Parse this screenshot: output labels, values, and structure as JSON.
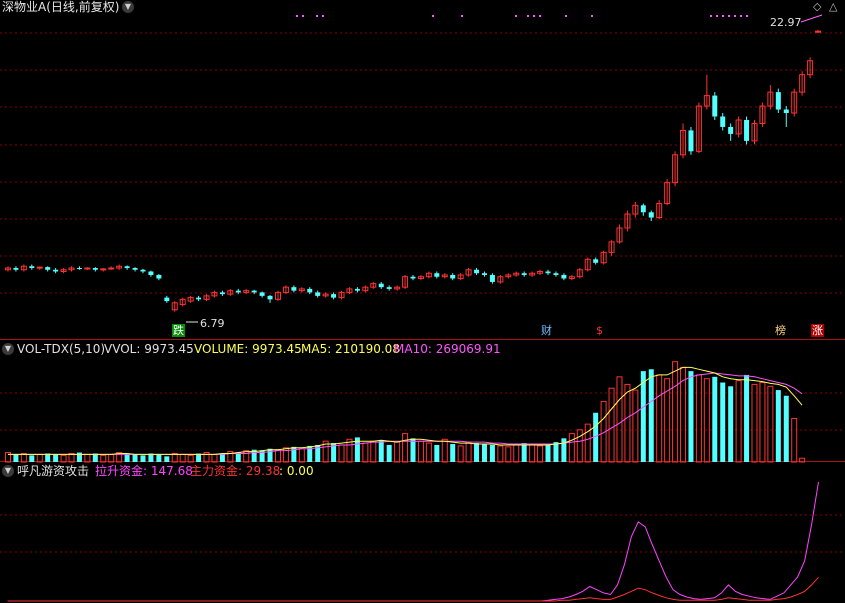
{
  "main_panel": {
    "title": "深物业A(日线,前复权)",
    "high_label": "22.97",
    "low_label": "6.79",
    "markers": {
      "die": "跌",
      "cai": "财",
      "dollar": "$",
      "bang": "榜",
      "zhang": "涨"
    },
    "colors": {
      "up": "#ff3232",
      "down": "#54ffff",
      "grid": "#8b0000",
      "panel_border": "#aa1111"
    }
  },
  "vol_panel": {
    "name": "VOL-TDX(5,10)",
    "vvol_label": "VVOL: 9973.45",
    "volume_label": "VOLUME: 9973.45",
    "ma5_label": "MA5: 210190.08",
    "ma10_label": "MA10: 269069.91",
    "colors": {
      "ma5": "#ffff55",
      "ma10": "#ff55ff",
      "volume": "#ffff55"
    }
  },
  "ind_panel": {
    "name": "呼凡游资攻击",
    "lift_label": "拉升资金: 147.68",
    "main_label": "主力资金: 29.38",
    "zero_label": ": 0.00",
    "colors": {
      "lift": "#ff44ff",
      "main": "#ff3232",
      "zero": "#ffff55"
    }
  },
  "chart_data": {
    "type": "candlestick",
    "title": "深物业A(日线,前复权)",
    "price_high": 22.97,
    "price_low": 6.79,
    "price_range": [
      6.2,
      24.0
    ],
    "candles": [
      {
        "o": 9.2,
        "c": 9.3,
        "h": 9.4,
        "l": 9.1
      },
      {
        "o": 9.3,
        "c": 9.2,
        "h": 9.4,
        "l": 9.1
      },
      {
        "o": 9.2,
        "c": 9.4,
        "h": 9.5,
        "l": 9.1
      },
      {
        "o": 9.4,
        "c": 9.3,
        "h": 9.5,
        "l": 9.2
      },
      {
        "o": 9.3,
        "c": 9.35,
        "h": 9.4,
        "l": 9.2
      },
      {
        "o": 9.35,
        "c": 9.2,
        "h": 9.4,
        "l": 9.1
      },
      {
        "o": 9.2,
        "c": 9.1,
        "h": 9.3,
        "l": 9.0
      },
      {
        "o": 9.1,
        "c": 9.2,
        "h": 9.3,
        "l": 9.0
      },
      {
        "o": 9.2,
        "c": 9.3,
        "h": 9.4,
        "l": 9.1
      },
      {
        "o": 9.3,
        "c": 9.25,
        "h": 9.4,
        "l": 9.2
      },
      {
        "o": 9.25,
        "c": 9.3,
        "h": 9.35,
        "l": 9.2
      },
      {
        "o": 9.3,
        "c": 9.2,
        "h": 9.35,
        "l": 9.1
      },
      {
        "o": 9.2,
        "c": 9.25,
        "h": 9.3,
        "l": 9.1
      },
      {
        "o": 9.25,
        "c": 9.3,
        "h": 9.4,
        "l": 9.2
      },
      {
        "o": 9.3,
        "c": 9.4,
        "h": 9.5,
        "l": 9.2
      },
      {
        "o": 9.4,
        "c": 9.3,
        "h": 9.45,
        "l": 9.2
      },
      {
        "o": 9.3,
        "c": 9.2,
        "h": 9.35,
        "l": 9.1
      },
      {
        "o": 9.2,
        "c": 9.1,
        "h": 9.25,
        "l": 9.0
      },
      {
        "o": 9.1,
        "c": 8.9,
        "h": 9.15,
        "l": 8.8
      },
      {
        "o": 8.9,
        "c": 8.7,
        "h": 8.95,
        "l": 8.6
      },
      {
        "o": 7.6,
        "c": 7.4,
        "h": 7.7,
        "l": 7.3
      },
      {
        "o": 6.9,
        "c": 7.3,
        "h": 7.4,
        "l": 6.79
      },
      {
        "o": 7.2,
        "c": 7.5,
        "h": 7.6,
        "l": 7.1
      },
      {
        "o": 7.4,
        "c": 7.6,
        "h": 7.7,
        "l": 7.3
      },
      {
        "o": 7.6,
        "c": 7.5,
        "h": 7.7,
        "l": 7.4
      },
      {
        "o": 7.5,
        "c": 7.7,
        "h": 7.8,
        "l": 7.4
      },
      {
        "o": 7.7,
        "c": 7.9,
        "h": 8.0,
        "l": 7.6
      },
      {
        "o": 7.9,
        "c": 7.8,
        "h": 8.0,
        "l": 7.7
      },
      {
        "o": 7.8,
        "c": 8.0,
        "h": 8.1,
        "l": 7.7
      },
      {
        "o": 8.0,
        "c": 7.9,
        "h": 8.1,
        "l": 7.8
      },
      {
        "o": 7.9,
        "c": 8.0,
        "h": 8.1,
        "l": 7.8
      },
      {
        "o": 8.0,
        "c": 7.9,
        "h": 8.05,
        "l": 7.8
      },
      {
        "o": 7.9,
        "c": 7.7,
        "h": 7.95,
        "l": 7.6
      },
      {
        "o": 7.7,
        "c": 7.5,
        "h": 7.75,
        "l": 7.3
      },
      {
        "o": 7.5,
        "c": 7.9,
        "h": 8.0,
        "l": 7.4
      },
      {
        "o": 7.9,
        "c": 8.2,
        "h": 8.3,
        "l": 7.8
      },
      {
        "o": 8.2,
        "c": 8.0,
        "h": 8.3,
        "l": 7.9
      },
      {
        "o": 8.0,
        "c": 8.1,
        "h": 8.2,
        "l": 7.9
      },
      {
        "o": 8.1,
        "c": 7.9,
        "h": 8.2,
        "l": 7.8
      },
      {
        "o": 7.9,
        "c": 7.7,
        "h": 8.0,
        "l": 7.6
      },
      {
        "o": 7.7,
        "c": 7.8,
        "h": 7.9,
        "l": 7.6
      },
      {
        "o": 7.8,
        "c": 7.6,
        "h": 7.9,
        "l": 7.5
      },
      {
        "o": 7.6,
        "c": 7.9,
        "h": 8.0,
        "l": 7.5
      },
      {
        "o": 7.9,
        "c": 8.1,
        "h": 8.2,
        "l": 7.8
      },
      {
        "o": 8.1,
        "c": 8.0,
        "h": 8.2,
        "l": 7.9
      },
      {
        "o": 8.0,
        "c": 8.2,
        "h": 8.3,
        "l": 7.9
      },
      {
        "o": 8.2,
        "c": 8.4,
        "h": 8.5,
        "l": 8.1
      },
      {
        "o": 8.4,
        "c": 8.2,
        "h": 8.5,
        "l": 8.1
      },
      {
        "o": 8.2,
        "c": 8.1,
        "h": 8.3,
        "l": 8.0
      },
      {
        "o": 8.1,
        "c": 8.2,
        "h": 8.3,
        "l": 8.0
      },
      {
        "o": 8.2,
        "c": 8.8,
        "h": 8.9,
        "l": 8.1
      },
      {
        "o": 8.8,
        "c": 8.7,
        "h": 8.9,
        "l": 8.6
      },
      {
        "o": 8.7,
        "c": 8.8,
        "h": 8.9,
        "l": 8.6
      },
      {
        "o": 8.8,
        "c": 9.0,
        "h": 9.1,
        "l": 8.7
      },
      {
        "o": 9.0,
        "c": 8.8,
        "h": 9.1,
        "l": 8.7
      },
      {
        "o": 8.8,
        "c": 8.9,
        "h": 9.0,
        "l": 8.7
      },
      {
        "o": 8.9,
        "c": 8.7,
        "h": 9.0,
        "l": 8.6
      },
      {
        "o": 8.7,
        "c": 8.9,
        "h": 9.0,
        "l": 8.6
      },
      {
        "o": 8.9,
        "c": 9.2,
        "h": 9.3,
        "l": 8.8
      },
      {
        "o": 9.2,
        "c": 9.0,
        "h": 9.3,
        "l": 8.9
      },
      {
        "o": 9.0,
        "c": 8.9,
        "h": 9.1,
        "l": 8.8
      },
      {
        "o": 8.9,
        "c": 8.5,
        "h": 9.0,
        "l": 8.4
      },
      {
        "o": 8.5,
        "c": 8.8,
        "h": 8.9,
        "l": 8.4
      },
      {
        "o": 8.8,
        "c": 8.9,
        "h": 9.0,
        "l": 8.7
      },
      {
        "o": 8.9,
        "c": 9.0,
        "h": 9.1,
        "l": 8.8
      },
      {
        "o": 9.0,
        "c": 8.9,
        "h": 9.1,
        "l": 8.8
      },
      {
        "o": 8.9,
        "c": 9.0,
        "h": 9.1,
        "l": 8.8
      },
      {
        "o": 9.0,
        "c": 9.1,
        "h": 9.2,
        "l": 8.9
      },
      {
        "o": 9.1,
        "c": 9.0,
        "h": 9.2,
        "l": 8.9
      },
      {
        "o": 9.0,
        "c": 8.9,
        "h": 9.1,
        "l": 8.8
      },
      {
        "o": 8.9,
        "c": 8.7,
        "h": 9.0,
        "l": 8.6
      },
      {
        "o": 8.7,
        "c": 8.8,
        "h": 8.9,
        "l": 8.6
      },
      {
        "o": 8.8,
        "c": 9.2,
        "h": 9.3,
        "l": 8.7
      },
      {
        "o": 9.2,
        "c": 9.8,
        "h": 9.9,
        "l": 9.1
      },
      {
        "o": 9.8,
        "c": 9.6,
        "h": 9.9,
        "l": 9.5
      },
      {
        "o": 9.6,
        "c": 10.2,
        "h": 10.3,
        "l": 9.5
      },
      {
        "o": 10.2,
        "c": 10.8,
        "h": 10.9,
        "l": 10.0
      },
      {
        "o": 10.8,
        "c": 11.6,
        "h": 11.8,
        "l": 10.7
      },
      {
        "o": 11.6,
        "c": 12.4,
        "h": 12.6,
        "l": 11.4
      },
      {
        "o": 12.4,
        "c": 12.9,
        "h": 13.1,
        "l": 12.2
      },
      {
        "o": 12.9,
        "c": 12.5,
        "h": 13.0,
        "l": 12.3
      },
      {
        "o": 12.5,
        "c": 12.2,
        "h": 12.6,
        "l": 12.0
      },
      {
        "o": 12.2,
        "c": 13.0,
        "h": 13.2,
        "l": 12.1
      },
      {
        "o": 13.0,
        "c": 14.2,
        "h": 14.4,
        "l": 12.9
      },
      {
        "o": 14.2,
        "c": 15.8,
        "h": 16.0,
        "l": 14.0
      },
      {
        "o": 15.8,
        "c": 17.2,
        "h": 17.6,
        "l": 15.6
      },
      {
        "o": 17.2,
        "c": 16.0,
        "h": 17.4,
        "l": 15.8
      },
      {
        "o": 16.0,
        "c": 18.6,
        "h": 18.8,
        "l": 15.9
      },
      {
        "o": 18.6,
        "c": 19.2,
        "h": 20.4,
        "l": 18.4
      },
      {
        "o": 19.2,
        "c": 18.0,
        "h": 19.4,
        "l": 17.8
      },
      {
        "o": 18.0,
        "c": 17.4,
        "h": 18.2,
        "l": 17.2
      },
      {
        "o": 17.4,
        "c": 17.0,
        "h": 17.6,
        "l": 16.6
      },
      {
        "o": 17.0,
        "c": 17.8,
        "h": 18.0,
        "l": 16.8
      },
      {
        "o": 17.8,
        "c": 16.6,
        "h": 18.0,
        "l": 16.4
      },
      {
        "o": 16.6,
        "c": 17.6,
        "h": 17.8,
        "l": 16.4
      },
      {
        "o": 17.6,
        "c": 18.6,
        "h": 18.8,
        "l": 17.4
      },
      {
        "o": 18.6,
        "c": 19.4,
        "h": 19.8,
        "l": 18.4
      },
      {
        "o": 19.4,
        "c": 18.4,
        "h": 19.6,
        "l": 18.2
      },
      {
        "o": 18.4,
        "c": 18.2,
        "h": 18.6,
        "l": 17.4
      },
      {
        "o": 18.2,
        "c": 19.4,
        "h": 19.6,
        "l": 18.0
      },
      {
        "o": 19.4,
        "c": 20.4,
        "h": 20.6,
        "l": 19.2
      },
      {
        "o": 20.4,
        "c": 21.2,
        "h": 21.4,
        "l": 20.2
      },
      {
        "o": 22.9,
        "c": 22.9,
        "h": 22.97,
        "l": 22.8
      }
    ],
    "volume_values": [
      10,
      8,
      9,
      7,
      8,
      9,
      8,
      7,
      9,
      10,
      8,
      9,
      7,
      8,
      10,
      9,
      8,
      7,
      9,
      8,
      6,
      9,
      8,
      7,
      9,
      10,
      8,
      9,
      11,
      10,
      12,
      13,
      12,
      14,
      13,
      15,
      16,
      14,
      17,
      18,
      22,
      20,
      18,
      24,
      26,
      20,
      22,
      23,
      18,
      21,
      30,
      25,
      22,
      20,
      18,
      24,
      19,
      17,
      21,
      20,
      19,
      18,
      17,
      16,
      18,
      20,
      18,
      17,
      19,
      21,
      25,
      30,
      34,
      40,
      52,
      64,
      78,
      90,
      82,
      76,
      96,
      98,
      92,
      88,
      106,
      100,
      96,
      92,
      88,
      90,
      84,
      80,
      86,
      92,
      82,
      84,
      80,
      76,
      70,
      46,
      4
    ],
    "volume_ma5": [
      8,
      8,
      8,
      8,
      8,
      8,
      8,
      8,
      8,
      8,
      8,
      8,
      8,
      8,
      9,
      9,
      8,
      8,
      8,
      8,
      8,
      8,
      8,
      8,
      8,
      8,
      8,
      9,
      9,
      10,
      11,
      11,
      12,
      13,
      13,
      14,
      15,
      15,
      16,
      17,
      19,
      19,
      20,
      21,
      22,
      22,
      22,
      23,
      22,
      21,
      23,
      24,
      24,
      23,
      22,
      22,
      21,
      20,
      20,
      19,
      19,
      19,
      18,
      18,
      18,
      18,
      18,
      18,
      18,
      19,
      20,
      23,
      27,
      32,
      38,
      46,
      56,
      66,
      74,
      78,
      84,
      90,
      92,
      92,
      96,
      100,
      100,
      98,
      96,
      94,
      90,
      88,
      87,
      87,
      86,
      85,
      83,
      82,
      79,
      70,
      60
    ],
    "volume_ma10": [
      8,
      8,
      8,
      8,
      8,
      8,
      8,
      8,
      8,
      8,
      8,
      8,
      8,
      8,
      8,
      8,
      8,
      8,
      8,
      8,
      8,
      8,
      8,
      8,
      8,
      8,
      8,
      8,
      9,
      9,
      9,
      10,
      10,
      11,
      12,
      12,
      13,
      14,
      14,
      15,
      16,
      17,
      18,
      18,
      19,
      20,
      21,
      21,
      22,
      22,
      22,
      22,
      22,
      22,
      22,
      22,
      22,
      22,
      21,
      21,
      21,
      20,
      20,
      19,
      19,
      19,
      19,
      19,
      19,
      19,
      20,
      21,
      22,
      24,
      27,
      31,
      36,
      41,
      47,
      52,
      58,
      64,
      70,
      75,
      80,
      86,
      90,
      92,
      93,
      94,
      93,
      92,
      91,
      91,
      90,
      88,
      86,
      84,
      82,
      78,
      72
    ],
    "lift_funds": [
      0,
      0,
      0,
      0,
      0,
      0,
      0,
      0,
      0,
      0,
      0,
      0,
      0,
      0,
      0,
      0,
      0,
      0,
      0,
      0,
      0,
      0,
      0,
      0,
      0,
      0,
      0,
      0,
      0,
      0,
      0,
      0,
      0,
      0,
      0,
      0,
      0,
      0,
      0,
      0,
      0,
      0,
      0,
      0,
      0,
      0,
      0,
      0,
      0,
      0,
      0,
      0,
      0,
      0,
      0,
      0,
      0,
      0,
      0,
      0,
      0,
      0,
      0,
      0,
      0,
      0,
      0,
      0,
      0,
      0,
      0,
      0,
      0,
      0,
      0,
      0,
      0,
      0,
      1,
      2,
      3,
      5,
      8,
      12,
      18,
      14,
      10,
      8,
      20,
      45,
      80,
      98,
      92,
      70,
      50,
      30,
      14,
      8,
      5,
      3,
      2,
      3,
      4,
      10,
      20,
      12,
      8,
      6,
      4,
      3,
      2,
      6,
      10,
      20,
      30,
      50,
      95,
      147.68
    ],
    "main_funds": [
      0,
      0,
      0,
      0,
      0,
      0,
      0,
      0,
      0,
      0,
      0,
      0,
      0,
      0,
      0,
      0,
      0,
      0,
      0,
      0,
      0,
      0,
      0,
      0,
      0,
      0,
      0,
      0,
      0,
      0,
      0,
      0,
      0,
      0,
      0,
      0,
      0,
      0,
      0,
      0,
      0,
      0,
      0,
      0,
      0,
      0,
      0,
      0,
      0,
      0,
      0,
      0,
      0,
      0,
      0,
      0,
      0,
      0,
      0,
      0,
      0,
      0,
      0,
      0,
      0,
      0,
      0,
      0,
      0,
      0,
      0,
      0,
      0,
      0,
      0,
      0,
      0,
      0,
      0,
      0,
      1,
      1,
      2,
      3,
      4,
      3,
      2,
      2,
      5,
      8,
      12,
      16,
      14,
      10,
      7,
      4,
      2,
      1,
      1,
      1,
      1,
      1,
      1,
      2,
      4,
      3,
      2,
      1,
      1,
      1,
      1,
      2,
      3,
      5,
      8,
      12,
      20,
      29.38
    ]
  }
}
